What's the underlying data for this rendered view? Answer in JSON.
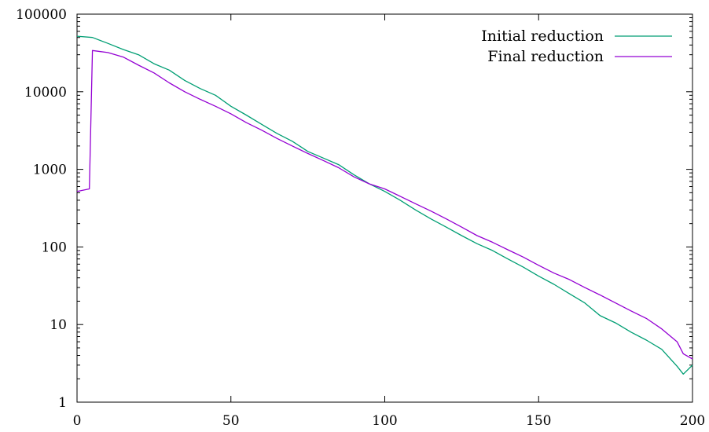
{
  "chart_data": {
    "type": "line",
    "title": "",
    "xlabel": "",
    "ylabel": "",
    "xlim": [
      0,
      200
    ],
    "ylim": [
      1,
      100000
    ],
    "yscale": "log",
    "grid": false,
    "legend_position": "top-right",
    "x_ticks": [
      0,
      50,
      100,
      150,
      200
    ],
    "x_tick_labels": [
      "0",
      "50",
      "100",
      "150",
      "200"
    ],
    "y_ticks": [
      1,
      10,
      100,
      1000,
      10000,
      100000
    ],
    "y_tick_labels": [
      "1",
      "10",
      "100",
      "1000",
      "10000",
      "100000"
    ],
    "series": [
      {
        "name": "Initial reduction",
        "color": "#009e73",
        "x": [
          0,
          5,
          10,
          15,
          20,
          25,
          30,
          35,
          40,
          45,
          50,
          55,
          60,
          65,
          70,
          75,
          80,
          85,
          90,
          95,
          100,
          105,
          110,
          115,
          120,
          125,
          130,
          135,
          140,
          145,
          150,
          155,
          160,
          165,
          170,
          175,
          180,
          185,
          190,
          195,
          197,
          200
        ],
        "y": [
          52000,
          50000,
          42000,
          35000,
          30000,
          23000,
          19000,
          14000,
          11000,
          9000,
          6500,
          5000,
          3800,
          2900,
          2300,
          1700,
          1400,
          1150,
          850,
          650,
          520,
          400,
          300,
          230,
          180,
          140,
          110,
          90,
          70,
          55,
          42,
          33,
          25,
          19,
          13,
          10.5,
          8,
          6.3,
          4.8,
          2.9,
          2.3,
          3.0
        ]
      },
      {
        "name": "Final reduction",
        "color": "#9400d3",
        "x": [
          0,
          4,
          5,
          10,
          15,
          20,
          25,
          30,
          35,
          40,
          45,
          50,
          55,
          60,
          65,
          70,
          75,
          80,
          85,
          90,
          95,
          100,
          105,
          110,
          115,
          120,
          125,
          130,
          135,
          140,
          145,
          150,
          155,
          160,
          165,
          170,
          175,
          180,
          185,
          190,
          195,
          197,
          200
        ],
        "y": [
          520,
          560,
          34000,
          32000,
          28000,
          22000,
          17500,
          13000,
          10000,
          8000,
          6500,
          5200,
          4000,
          3200,
          2500,
          2000,
          1600,
          1300,
          1050,
          800,
          650,
          560,
          450,
          360,
          290,
          230,
          180,
          140,
          115,
          92,
          74,
          58,
          46,
          38,
          30,
          24,
          19,
          15,
          12,
          8.8,
          6,
          4.2,
          3.6
        ]
      }
    ]
  }
}
